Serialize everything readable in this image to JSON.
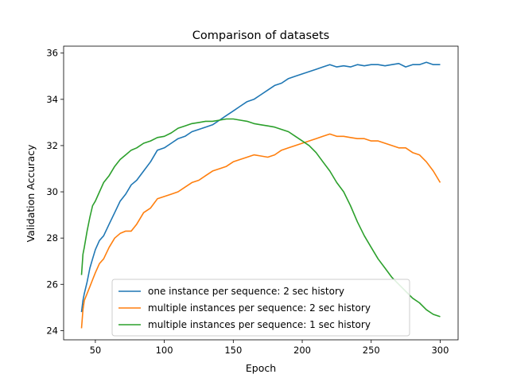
{
  "chart_data": {
    "type": "line",
    "title": "Comparison of datasets",
    "xlabel": "Epoch",
    "ylabel": "Validation Accuracy",
    "xlim": [
      27,
      313
    ],
    "ylim": [
      23.6,
      36.3
    ],
    "xticks": [
      50,
      100,
      150,
      200,
      250,
      300
    ],
    "yticks": [
      24,
      26,
      28,
      30,
      32,
      34,
      36
    ],
    "grid": false,
    "legend_position": "lower-center",
    "series": [
      {
        "name": "one instance per sequence: 2 sec history",
        "color": "#1f77b4",
        "x": [
          40,
          41,
          42,
          44,
          46,
          48,
          50,
          53,
          56,
          60,
          64,
          68,
          72,
          76,
          80,
          85,
          90,
          95,
          100,
          105,
          110,
          115,
          120,
          125,
          130,
          135,
          140,
          145,
          150,
          155,
          160,
          165,
          170,
          175,
          180,
          185,
          190,
          195,
          200,
          205,
          210,
          215,
          220,
          225,
          230,
          235,
          240,
          245,
          250,
          255,
          260,
          265,
          270,
          275,
          280,
          285,
          290,
          295,
          300
        ],
        "y": [
          24.8,
          25.3,
          25.6,
          26.1,
          26.7,
          27.1,
          27.5,
          27.9,
          28.1,
          28.6,
          29.1,
          29.6,
          29.9,
          30.3,
          30.5,
          30.9,
          31.3,
          31.8,
          31.9,
          32.1,
          32.3,
          32.4,
          32.6,
          32.7,
          32.8,
          32.9,
          33.1,
          33.3,
          33.5,
          33.7,
          33.9,
          34.0,
          34.2,
          34.4,
          34.6,
          34.7,
          34.9,
          35.0,
          35.1,
          35.2,
          35.3,
          35.4,
          35.5,
          35.4,
          35.45,
          35.4,
          35.5,
          35.45,
          35.5,
          35.5,
          35.45,
          35.5,
          35.55,
          35.4,
          35.5,
          35.5,
          35.6,
          35.5,
          35.5
        ]
      },
      {
        "name": "multiple instances per sequence: 2 sec history",
        "color": "#ff7f0e",
        "x": [
          40,
          41,
          42,
          44,
          46,
          48,
          50,
          53,
          56,
          60,
          64,
          68,
          72,
          76,
          80,
          85,
          90,
          95,
          100,
          105,
          110,
          115,
          120,
          125,
          130,
          135,
          140,
          145,
          150,
          155,
          160,
          165,
          170,
          175,
          180,
          185,
          190,
          195,
          200,
          205,
          210,
          215,
          220,
          225,
          230,
          235,
          240,
          245,
          250,
          255,
          260,
          265,
          270,
          275,
          280,
          285,
          290,
          295,
          300
        ],
        "y": [
          24.1,
          24.9,
          25.3,
          25.6,
          25.9,
          26.2,
          26.5,
          26.9,
          27.1,
          27.6,
          28.0,
          28.2,
          28.3,
          28.3,
          28.6,
          29.1,
          29.3,
          29.7,
          29.8,
          29.9,
          30.0,
          30.2,
          30.4,
          30.5,
          30.7,
          30.9,
          31.0,
          31.1,
          31.3,
          31.4,
          31.5,
          31.6,
          31.55,
          31.5,
          31.6,
          31.8,
          31.9,
          32.0,
          32.1,
          32.2,
          32.3,
          32.4,
          32.5,
          32.4,
          32.4,
          32.35,
          32.3,
          32.3,
          32.2,
          32.2,
          32.1,
          32.0,
          31.9,
          31.9,
          31.7,
          31.6,
          31.3,
          30.9,
          30.4
        ]
      },
      {
        "name": "multiple instances per sequence: 1 sec history",
        "color": "#2ca02c",
        "x": [
          40,
          41,
          42,
          44,
          46,
          48,
          50,
          53,
          56,
          60,
          64,
          68,
          72,
          76,
          80,
          85,
          90,
          95,
          100,
          105,
          110,
          115,
          120,
          125,
          130,
          135,
          140,
          145,
          150,
          155,
          160,
          165,
          170,
          175,
          180,
          185,
          190,
          195,
          200,
          205,
          210,
          215,
          220,
          225,
          230,
          235,
          240,
          245,
          250,
          255,
          260,
          265,
          270,
          275,
          280,
          285,
          290,
          295,
          300
        ],
        "y": [
          26.4,
          27.3,
          27.6,
          28.3,
          28.9,
          29.4,
          29.6,
          30.0,
          30.4,
          30.7,
          31.1,
          31.4,
          31.6,
          31.8,
          31.9,
          32.1,
          32.2,
          32.35,
          32.4,
          32.55,
          32.75,
          32.85,
          32.95,
          33.0,
          33.05,
          33.05,
          33.1,
          33.15,
          33.15,
          33.1,
          33.05,
          32.95,
          32.9,
          32.85,
          32.8,
          32.7,
          32.6,
          32.4,
          32.2,
          32.0,
          31.7,
          31.3,
          30.9,
          30.4,
          30.0,
          29.4,
          28.7,
          28.1,
          27.6,
          27.1,
          26.7,
          26.3,
          26.0,
          25.7,
          25.4,
          25.2,
          24.9,
          24.7,
          24.6
        ]
      }
    ]
  }
}
